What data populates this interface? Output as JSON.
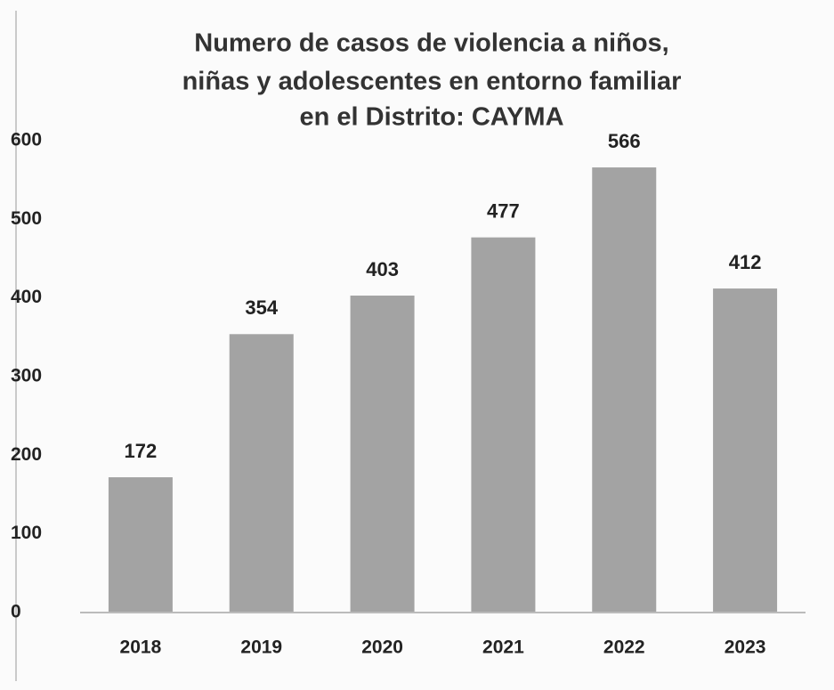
{
  "chart_data": {
    "type": "bar",
    "title": [
      "Numero de casos de violencia a niños,",
      "niñas y adolescentes en entorno familiar",
      "en el Distrito: CAYMA"
    ],
    "categories": [
      "2018",
      "2019",
      "2020",
      "2021",
      "2022",
      "2023"
    ],
    "values": [
      172,
      354,
      403,
      477,
      566,
      412
    ],
    "color": "#a3a3a3",
    "ylim": [
      0,
      600
    ],
    "yticks": [
      0,
      100,
      200,
      300,
      400,
      500,
      600
    ],
    "grid": false
  }
}
